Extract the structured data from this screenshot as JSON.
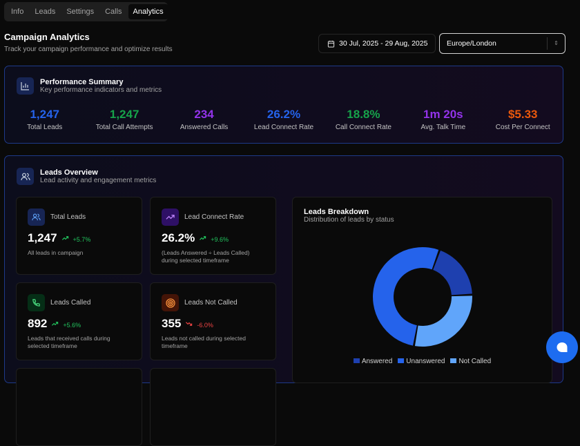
{
  "tabs": [
    {
      "label": "Info"
    },
    {
      "label": "Leads"
    },
    {
      "label": "Settings"
    },
    {
      "label": "Calls"
    },
    {
      "label": "Analytics",
      "active": true
    }
  ],
  "header": {
    "title": "Campaign Analytics",
    "subtitle": "Track your campaign performance and optimize results",
    "date_range": "30 Jul, 2025 - 29 Aug, 2025",
    "timezone": "Europe/London"
  },
  "performance": {
    "title": "Performance Summary",
    "subtitle": "Key performance indicators and metrics",
    "stats": [
      {
        "value": "1,247",
        "label": "Total Leads",
        "color": "#2563eb"
      },
      {
        "value": "1,247",
        "label": "Total Call Attempts",
        "color": "#16a34a"
      },
      {
        "value": "234",
        "label": "Answered Calls",
        "color": "#9333ea"
      },
      {
        "value": "26.2%",
        "label": "Lead Connect Rate",
        "color": "#2563eb"
      },
      {
        "value": "18.8%",
        "label": "Call Connect Rate",
        "color": "#16a34a"
      },
      {
        "value": "1m 20s",
        "label": "Avg. Talk Time",
        "color": "#9333ea"
      },
      {
        "value": "$5.33",
        "label": "Cost Per Connect",
        "color": "#ea580c"
      }
    ]
  },
  "leads_overview": {
    "title": "Leads Overview",
    "subtitle": "Lead activity and engagement metrics",
    "cards": [
      {
        "title": "Total Leads",
        "value": "1,247",
        "delta": "+5.7%",
        "trend": "up",
        "desc": "All leads in campaign",
        "icon": "users-icon"
      },
      {
        "title": "Lead Connect Rate",
        "value": "26.2%",
        "delta": "+9.6%",
        "trend": "up",
        "desc": "(Leads Answered ÷ Leads Called) during selected timeframe",
        "icon": "trending-up-icon"
      },
      {
        "title": "Leads Called",
        "value": "892",
        "delta": "+5.6%",
        "trend": "up",
        "desc": "Leads that received calls during selected timeframe",
        "icon": "phone-icon"
      },
      {
        "title": "Leads Not Called",
        "value": "355",
        "delta": "-6.0%",
        "trend": "down",
        "desc": "Leads not called during selected timeframe",
        "icon": "target-icon"
      }
    ]
  },
  "chart_data": {
    "type": "pie",
    "title": "Leads Breakdown",
    "subtitle": "Distribution of leads by status",
    "donut": true,
    "categories": [
      "Answered",
      "Unanswered",
      "Not Called"
    ],
    "values": [
      234,
      658,
      355
    ],
    "colors": [
      "#1e40af",
      "#2563eb",
      "#60a5fa"
    ],
    "legend": "bottom"
  }
}
